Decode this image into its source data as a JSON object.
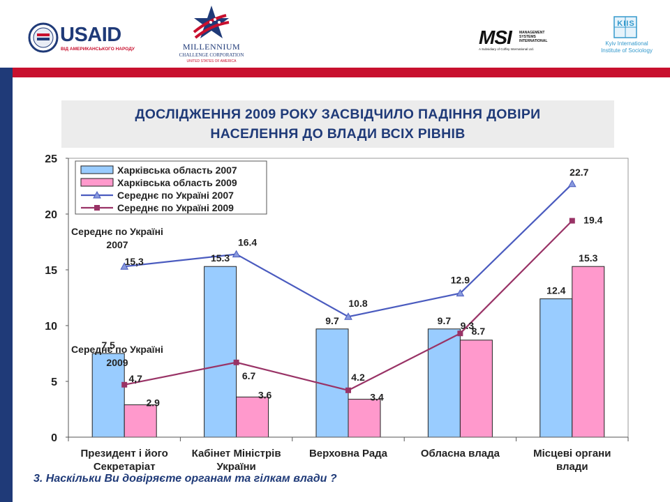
{
  "header": {
    "usaid": {
      "name": "USAID",
      "tagline": "ВІД АМЕРИКАНСЬКОГО НАРОДУ"
    },
    "mcc": {
      "line1": "MILLENNIUM",
      "line2": "CHALLENGE CORPORATION",
      "line3": "UNITED STATES OF AMERICA"
    },
    "msi": {
      "name": "MSI",
      "line1": "MANAGEMENT",
      "line2": "SYSTEMS",
      "line3": "INTERNATIONAL",
      "sub": "A Subsidiary of Coffey International Ltd."
    },
    "kiis": {
      "mark": "KIIS",
      "line1": "Kyiv International",
      "line2": "Institute of Sociology"
    }
  },
  "slide": {
    "title_line1": "ДОСЛІДЖЕННЯ 2009 РОКУ ЗАСВІДЧИЛО ПАДІННЯ ДОВІРИ",
    "title_line2": "НАСЕЛЕННЯ ДО ВЛАДИ ВСІХ РІВНІВ",
    "question": "3.  Наскільки Ви довіряєте органам та гілкам влади ?"
  },
  "colors": {
    "bar2007": "#99ccff",
    "bar2009": "#ff99cc",
    "line2007": "#4a5bbf",
    "line2009": "#993366",
    "navy": "#1f3a78",
    "red": "#c8102e"
  },
  "chart_data": {
    "type": "bar",
    "categories": [
      [
        "Президент і його",
        "Секретаріат"
      ],
      [
        "Кабінет Міністрів",
        "України"
      ],
      [
        "Верховна Рада"
      ],
      [
        "Обласна влада"
      ],
      [
        "Місцеві органи",
        "влади"
      ]
    ],
    "yticks": [
      "0",
      "5",
      "10",
      "15",
      "20",
      "25"
    ],
    "ylim": [
      0,
      25
    ],
    "series": [
      {
        "name": "Харківська область 2007",
        "kind": "bar",
        "values": [
          7.5,
          15.3,
          9.7,
          9.7,
          12.4
        ],
        "labels": [
          "7.5",
          "15.3",
          "9.7",
          "9.7",
          "12.4"
        ]
      },
      {
        "name": "Харківська область 2009",
        "kind": "bar",
        "values": [
          2.9,
          3.6,
          3.4,
          8.7,
          15.3
        ],
        "labels": [
          "2.9",
          "3.6",
          "3.4",
          "8.7",
          "15.3"
        ]
      },
      {
        "name": "Середнє по Україні 2007",
        "kind": "line",
        "values": [
          15.3,
          16.4,
          10.8,
          12.9,
          22.7
        ],
        "labels": [
          "15,3",
          "16.4",
          "10.8",
          "12.9",
          "22.7"
        ]
      },
      {
        "name": "Середнє по Україні 2009",
        "kind": "line",
        "values": [
          4.7,
          6.7,
          4.2,
          9.3,
          19.4
        ],
        "labels": [
          "4,7",
          "6.7",
          "4.2",
          "9.3",
          "19.4"
        ]
      }
    ],
    "annotations": [
      {
        "lines": [
          "Середнє по Україні",
          "2007"
        ]
      },
      {
        "lines": [
          "Середнє по Україні",
          "2009"
        ]
      }
    ]
  }
}
